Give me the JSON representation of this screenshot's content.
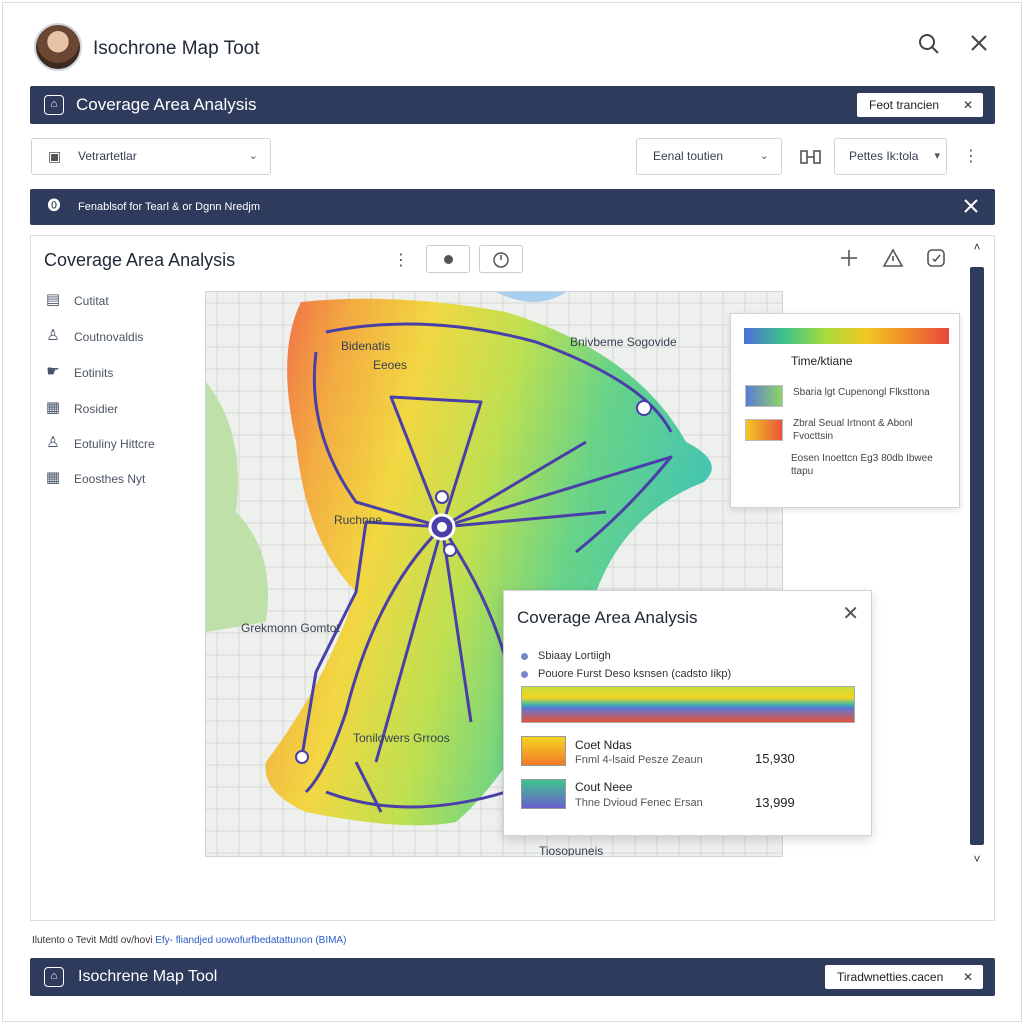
{
  "app": {
    "title": "Isochrone Map Toot"
  },
  "header_bar": {
    "title": "Coverage Area Analysis",
    "pill_label": "Feot trancien"
  },
  "toolbar": {
    "left_select": "Vetrartetlar",
    "mid_select": "Eenal toutien",
    "right_select": "Pettes Ik:tola"
  },
  "notice_bar": {
    "text": "Fenablsof for Tearl & or Dgnn Nredjm"
  },
  "panel": {
    "title": "Coverage Area Analysis"
  },
  "sidebar": {
    "items": [
      {
        "label": "Cutitat",
        "icon": "document-icon"
      },
      {
        "label": "Coutnovaldis",
        "icon": "user-icon"
      },
      {
        "label": "Eotinits",
        "icon": "hand-icon"
      },
      {
        "label": "Rosidier",
        "icon": "grid-icon"
      },
      {
        "label": "Eotuliny Hittcre",
        "icon": "person-icon"
      },
      {
        "label": "Eoosthes Nyt",
        "icon": "table-icon"
      }
    ]
  },
  "map": {
    "labels": [
      "Bidenatis",
      "Eeoes",
      "Bnivbeme Sogovide",
      "Ruchnne",
      "Grekmonn Gomtot",
      "Tonilowers Grroos",
      "Tiosopuneis"
    ]
  },
  "legend": {
    "title": "Time/ktiane",
    "entries": [
      {
        "text": "Sbaria lgt Cupenongl Flksttona",
        "color_a": "#5b7bd6",
        "color_b": "#8fd468"
      },
      {
        "text": "Zbral Seual Irtnont & Abonl Fvocttsin",
        "color_a": "#f3c623",
        "color_b": "#e8553b"
      },
      {
        "text": "Eosen Inoettcn Eg3 80db Ibwee ttapu",
        "color_a": "",
        "color_b": ""
      }
    ]
  },
  "popup": {
    "title": "Coverage Area Analysis",
    "line1": "Sbiaay Lortiigh",
    "line2": "Pouore Furst Deso ksnsen (cadsto Iikp)",
    "rows": [
      {
        "name": "Coet Ndas",
        "sub": "Fnml 4-lsaid Pesze Zeaun",
        "value": "15,930",
        "color_a": "#f5d420",
        "color_b": "#f07a2a"
      },
      {
        "name": "Cout Neee",
        "sub": "Thne Dvioud Fenec Ersan",
        "value": "13,999",
        "color_a": "#3fc48c",
        "color_b": "#6a5fd0"
      }
    ]
  },
  "footer": {
    "text": "Ilutento o Tevit Mdtl ov/hovi",
    "link": "Efy- fliandjed uowofurfbedatattunon (BIMA)"
  },
  "bottom_bar": {
    "title": "Isochrene Map Tool",
    "pill_label": "Tiradwnetties.cacen"
  },
  "colors": {
    "bar": "#2e3b5c",
    "route": "#4a3fa8",
    "accent": "#2b5cc8"
  }
}
